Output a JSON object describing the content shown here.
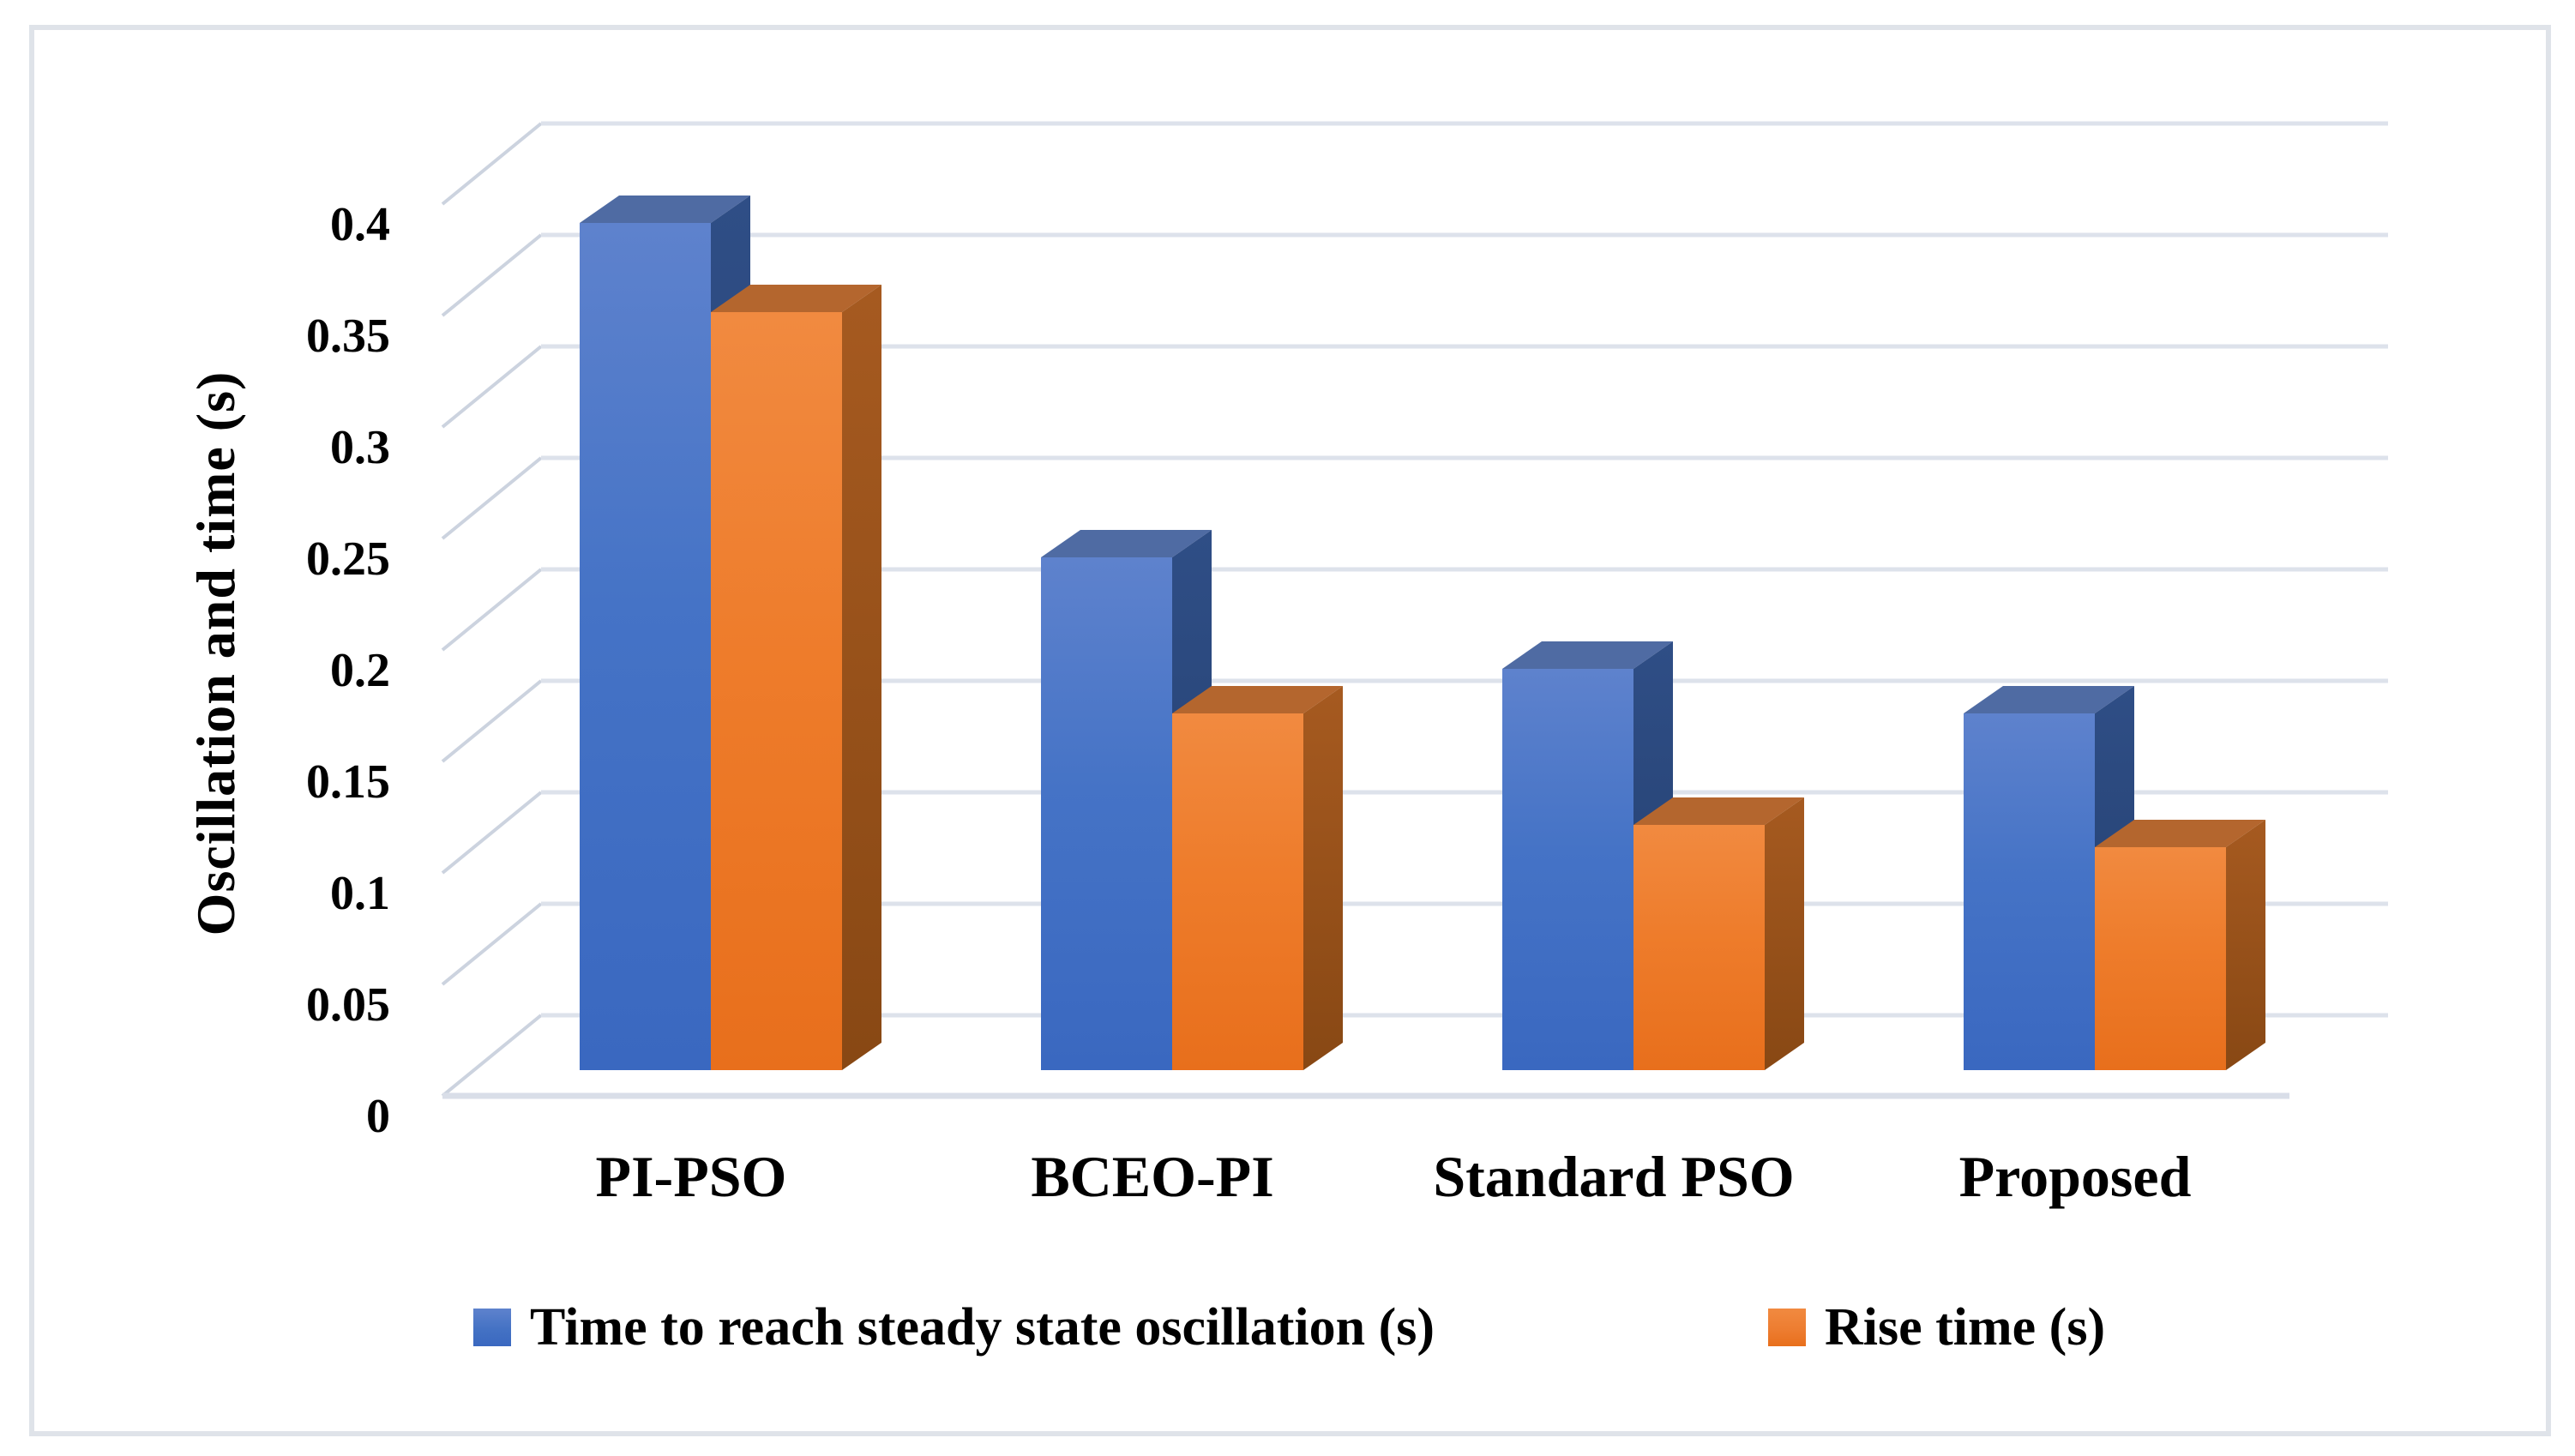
{
  "chart_data": {
    "type": "bar",
    "projection": "3d-clustered-column",
    "title": "",
    "categories": [
      "PI-PSO",
      "BCEO-PI",
      "Standard PSO",
      "Proposed"
    ],
    "series": [
      {
        "name": "Time to reach steady state oscillation (s)",
        "color": "#4472C4",
        "values": [
          0.38,
          0.23,
          0.18,
          0.16
        ]
      },
      {
        "name": "Rise time (s)",
        "color": "#ED7D31",
        "values": [
          0.34,
          0.16,
          0.11,
          0.1
        ]
      }
    ],
    "xlabel": "",
    "ylabel": "Oscillation and time (s)",
    "ylim": [
      0,
      0.4
    ],
    "ytick_step": 0.05,
    "yticks": [
      "0",
      "0.05",
      "0.1",
      "0.15",
      "0.2",
      "0.25",
      "0.3",
      "0.35",
      "0.4"
    ],
    "grid": true,
    "legend_position": "bottom"
  },
  "styles": {
    "background": "#ffffff",
    "frame_border_color": "#dfe3e9",
    "gridline_color": "#dde2eb",
    "tick_line_color": "#ccd3df",
    "floor_line_color": "#d9dee8",
    "text_color": "#000000",
    "series1_faces": {
      "front_top": "#5e82cd",
      "front_mid": "#4573c6",
      "front_bottom": "#3a68c0",
      "side_top": "#2f4e86",
      "side_bottom": "#223d6b",
      "top_face": "#4f6ba3"
    },
    "series2_faces": {
      "front_top": "#f18a40",
      "front_mid": "#ee7c2b",
      "front_bottom": "#e86f1c",
      "side_top": "#a65a20",
      "side_bottom": "#884814",
      "top_face": "#b4662e"
    }
  }
}
